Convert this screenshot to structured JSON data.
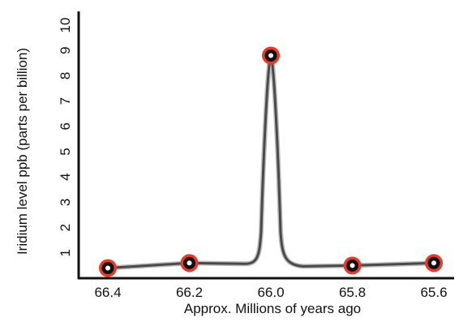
{
  "chart_data": {
    "type": "line",
    "title": "",
    "xlabel": "Approx. Millions of years ago",
    "ylabel": "Iridium level ppb (parts per billion)",
    "x_ticks": [
      "66.4",
      "66.2",
      "66.0",
      "65.8",
      "65.6"
    ],
    "y_ticks": [
      "1",
      "2",
      "3",
      "4",
      "5",
      "6",
      "7",
      "8",
      "9",
      "10"
    ],
    "xlim": [
      66.4,
      65.6
    ],
    "ylim": [
      0,
      10
    ],
    "x_reversed": true,
    "grid": false,
    "series": [
      {
        "values": [
          {
            "x": 66.4,
            "y": 0.4
          },
          {
            "x": 66.2,
            "y": 0.6
          },
          {
            "x": 66.0,
            "y": 8.8
          },
          {
            "x": 65.8,
            "y": 0.5
          },
          {
            "x": 65.6,
            "y": 0.6
          }
        ]
      }
    ],
    "colors": {
      "line": "#4a4a4a",
      "marker_ring": "#e8392b",
      "marker_fill": "#111111",
      "marker_center": "#ffffff",
      "axis": "#111111"
    }
  }
}
